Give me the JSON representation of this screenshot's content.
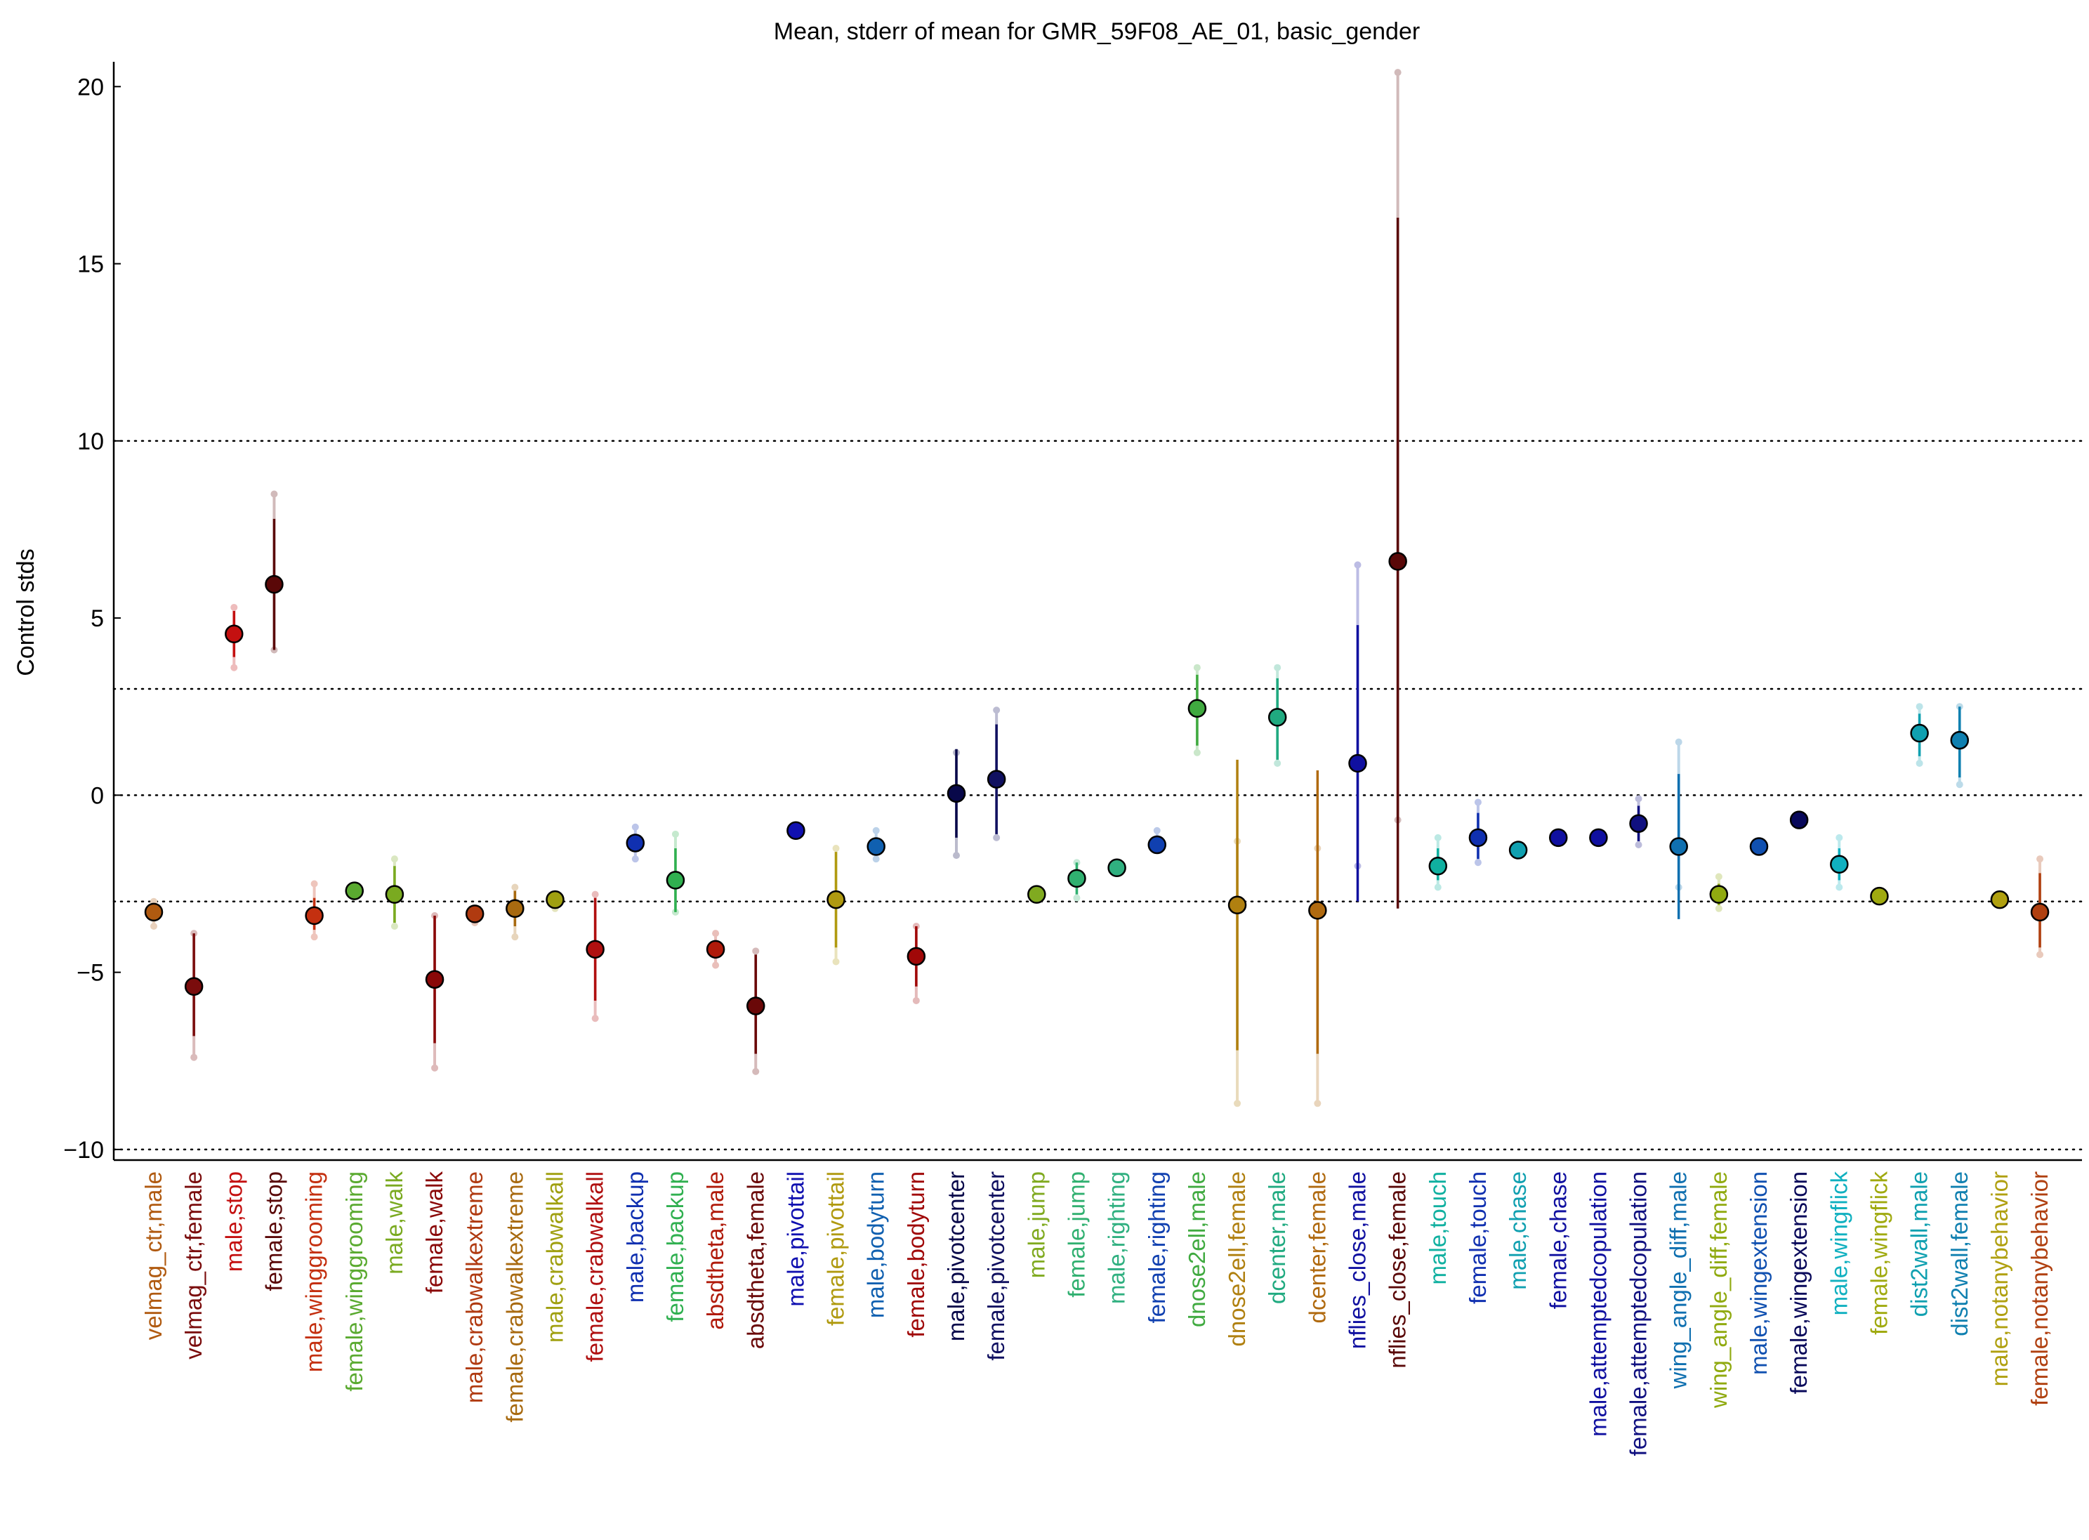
{
  "chart_data": {
    "type": "scatter",
    "title": "Mean, stderr of mean for GMR_59F08_AE_01, basic_gender",
    "ylabel": "Control stds",
    "xlabel": "",
    "ylim": [
      -10.3,
      20.7
    ],
    "yticks": [
      -10,
      -5,
      0,
      5,
      10,
      15,
      20
    ],
    "hlines": [
      -10,
      -3,
      0,
      3,
      10
    ],
    "grid": false,
    "legend": "none",
    "categories": [
      "velmag_ctr,male",
      "velmag_ctr,female",
      "male,stop",
      "female,stop",
      "male,winggrooming",
      "female,winggrooming",
      "male,walk",
      "female,walk",
      "male,crabwalkextreme",
      "female,crabwalkextreme",
      "male,crabwalkall",
      "female,crabwalkall",
      "male,backup",
      "female,backup",
      "absdtheta,male",
      "absdtheta,female",
      "male,pivottail",
      "female,pivottail",
      "male,bodyturn",
      "female,bodyturn",
      "male,pivotcenter",
      "female,pivotcenter",
      "male,jump",
      "female,jump",
      "male,righting",
      "female,righting",
      "dnose2ell,male",
      "dnose2ell,female",
      "dcenter,male",
      "dcenter,female",
      "nflies_close,male",
      "nflies_close,female",
      "male,touch",
      "female,touch",
      "male,chase",
      "female,chase",
      "male,attemptedcopulation",
      "female,attemptedcopulation",
      "wing_angle_diff,male",
      "wing_angle_diff,female",
      "male,wingextension",
      "female,wingextension",
      "male,wingflick",
      "female,wingflick",
      "dist2wall,male",
      "dist2wall,female",
      "male,notanybehavior",
      "female,notanybehavior"
    ],
    "colors": [
      "#b05a10",
      "#7a0c0c",
      "#c41010",
      "#5a0808",
      "#c43010",
      "#5aaa30",
      "#7aaa20",
      "#8a0808",
      "#b03a10",
      "#a86a10",
      "#a0a010",
      "#b01010",
      "#1030b0",
      "#30b050",
      "#b01a0a",
      "#6a0808",
      "#1010b0",
      "#b09a10",
      "#1060b0",
      "#a00808",
      "#08084a",
      "#101060",
      "#80aa20",
      "#30b070",
      "#30b080",
      "#1040b0",
      "#40aa40",
      "#b08010",
      "#20aa80",
      "#b06a10",
      "#1010a0",
      "#5a0808",
      "#10b0a0",
      "#1030b0",
      "#10a0b0",
      "#1010a0",
      "#1010a0",
      "#101080",
      "#1070b0",
      "#90aa10",
      "#1050b0",
      "#08085a",
      "#10b0c0",
      "#a0aa10",
      "#10a0b0",
      "#1080b0",
      "#b0a010",
      "#b04010"
    ],
    "series": [
      {
        "means": [
          -3.3,
          -5.4,
          4.55,
          5.95,
          -3.4,
          -2.7,
          -2.8,
          -5.2,
          -3.35,
          -3.2,
          -2.95,
          -4.35,
          -1.35,
          -2.4,
          -4.35,
          -5.95,
          -1.0,
          -2.95,
          -1.45,
          -4.55,
          0.05,
          0.45,
          -2.8,
          -2.35,
          -2.05,
          -1.4,
          2.45,
          -3.1,
          2.2,
          -3.25,
          0.9,
          6.6,
          -2.0,
          -1.2,
          -1.55,
          -1.2,
          -1.2,
          -0.8,
          -1.45,
          -2.8,
          -1.45,
          -0.7,
          -1.95,
          -2.85,
          1.75,
          1.55,
          -2.95,
          -3.3
        ],
        "sem_low": [
          -3.5,
          -6.8,
          3.9,
          4.1,
          -3.8,
          -2.8,
          -3.6,
          -7.0,
          -3.5,
          -3.7,
          -3.1,
          -5.8,
          -1.6,
          -3.3,
          -4.6,
          -7.3,
          -1.1,
          -4.3,
          -1.7,
          -5.4,
          -1.2,
          -1.1,
          -2.9,
          -2.8,
          -2.1,
          -1.5,
          1.4,
          -7.2,
          1.0,
          -7.3,
          -3.0,
          -3.2,
          -2.4,
          -1.8,
          -1.65,
          -1.3,
          -1.3,
          -1.3,
          -3.5,
          -3.1,
          -1.55,
          -0.8,
          -2.4,
          -2.95,
          1.1,
          0.5,
          -3.05,
          -4.3
        ],
        "sem_high": [
          -3.1,
          -3.9,
          5.2,
          7.8,
          -2.9,
          -2.6,
          -2.0,
          -3.4,
          -3.2,
          -2.7,
          -2.8,
          -2.9,
          -1.1,
          -1.5,
          -4.1,
          -4.5,
          -0.9,
          -1.6,
          -1.2,
          -3.7,
          1.3,
          2.0,
          -2.7,
          -1.9,
          -2.0,
          -1.3,
          3.4,
          1.0,
          3.3,
          0.7,
          4.8,
          16.3,
          -1.5,
          -0.5,
          -1.45,
          -1.1,
          -1.1,
          -0.3,
          0.6,
          -2.5,
          -1.35,
          -0.6,
          -1.5,
          -2.75,
          2.3,
          2.5,
          -2.85,
          -2.2
        ],
        "range_low": [
          -3.7,
          -7.4,
          3.6,
          4.1,
          -4.0,
          -2.8,
          -3.7,
          -7.7,
          -3.6,
          -4.0,
          -3.2,
          -6.3,
          -1.8,
          -3.3,
          -4.8,
          -7.8,
          -1.1,
          -4.7,
          -1.8,
          -5.8,
          -1.7,
          -1.2,
          -2.9,
          -2.9,
          -2.1,
          -1.5,
          1.2,
          -8.7,
          0.9,
          -8.7,
          -2.0,
          -0.7,
          -2.6,
          -1.9,
          -1.65,
          -1.3,
          -1.3,
          -1.4,
          -2.6,
          -3.2,
          -1.55,
          -0.8,
          -2.6,
          -2.95,
          0.9,
          0.3,
          -3.05,
          -4.5
        ],
        "range_high": [
          -3.0,
          -3.9,
          5.3,
          8.5,
          -2.5,
          -2.6,
          -1.8,
          -3.4,
          -3.2,
          -2.6,
          -2.8,
          -2.8,
          -0.9,
          -1.1,
          -3.9,
          -4.4,
          -0.9,
          -1.5,
          -1.0,
          -3.7,
          1.2,
          2.4,
          -2.7,
          -1.9,
          -2.0,
          -1.0,
          3.6,
          -1.3,
          3.6,
          -1.5,
          6.5,
          20.4,
          -1.2,
          -0.2,
          -1.45,
          -1.1,
          -1.1,
          -0.1,
          1.5,
          -2.3,
          -1.35,
          -0.6,
          -1.2,
          -2.75,
          2.5,
          2.5,
          -2.85,
          -1.8
        ]
      }
    ]
  }
}
